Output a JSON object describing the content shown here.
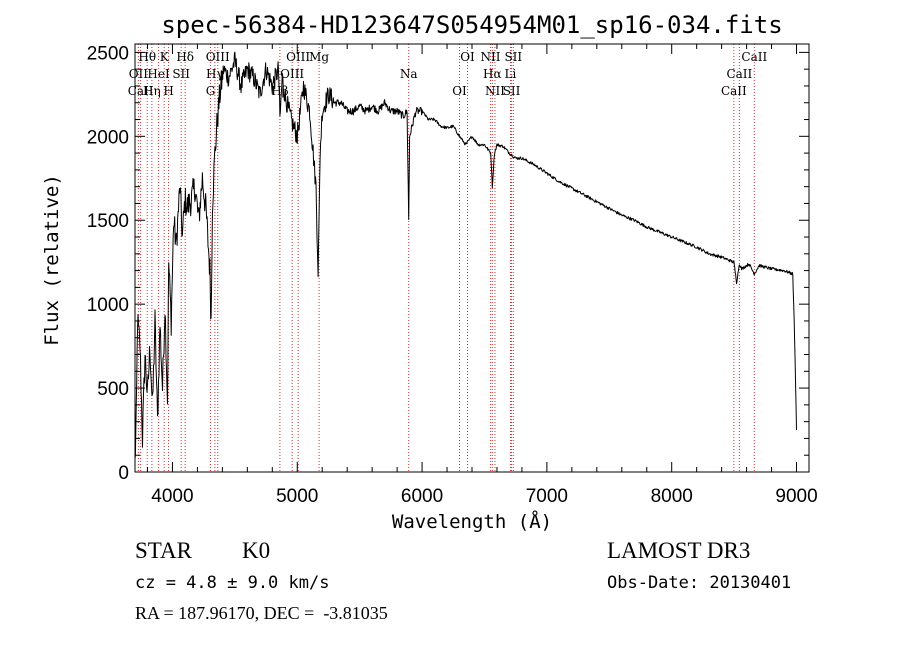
{
  "chart_data": {
    "type": "line",
    "title": "spec-56384-HD123647S054954M01_sp16-034.fits",
    "xlabel": "Wavelength (Å)",
    "ylabel": "Flux (relative)",
    "xlim": [
      3700,
      9100
    ],
    "ylim": [
      0,
      2550
    ],
    "x_ticks": [
      4000,
      5000,
      6000,
      7000,
      8000,
      9000
    ],
    "x_tick_labels": [
      "4000",
      "5000",
      "6000",
      "7000",
      "8000",
      "9000"
    ],
    "y_ticks": [
      0,
      500,
      1000,
      1500,
      2000,
      2500
    ],
    "y_tick_labels": [
      "0",
      "500",
      "1000",
      "1500",
      "2000",
      "2500"
    ],
    "series": [
      {
        "name": "spectrum",
        "x": [
          3700,
          3710,
          3720,
          3740,
          3760,
          3780,
          3800,
          3820,
          3840,
          3860,
          3880,
          3900,
          3920,
          3940,
          3960,
          3970,
          3990,
          4010,
          4030,
          4060,
          4080,
          4100,
          4120,
          4150,
          4180,
          4210,
          4240,
          4270,
          4300,
          4310,
          4320,
          4340,
          4360,
          4380,
          4410,
          4450,
          4500,
          4550,
          4600,
          4650,
          4700,
          4750,
          4800,
          4850,
          4861,
          4880,
          4900,
          4950,
          5000,
          5050,
          5100,
          5150,
          5167,
          5175,
          5183,
          5200,
          5250,
          5300,
          5350,
          5400,
          5450,
          5500,
          5550,
          5600,
          5650,
          5700,
          5750,
          5800,
          5850,
          5880,
          5893,
          5900,
          5950,
          6000,
          6050,
          6100,
          6150,
          6200,
          6250,
          6300,
          6350,
          6400,
          6450,
          6500,
          6550,
          6563,
          6580,
          6600,
          6650,
          6700,
          6750,
          6800,
          6900,
          7000,
          7100,
          7200,
          7300,
          7400,
          7500,
          7600,
          7700,
          7800,
          7900,
          8000,
          8100,
          8200,
          8300,
          8400,
          8498,
          8520,
          8542,
          8560,
          8600,
          8620,
          8662,
          8700,
          8800,
          8900,
          8970,
          8985,
          9000
        ],
        "y": [
          50,
          300,
          900,
          750,
          200,
          700,
          450,
          750,
          380,
          900,
          300,
          880,
          500,
          1000,
          420,
          1250,
          900,
          1500,
          1350,
          1700,
          1400,
          1620,
          1580,
          1620,
          1700,
          1500,
          1750,
          1550,
          1200,
          900,
          1600,
          1900,
          2100,
          2250,
          2400,
          2350,
          2450,
          2300,
          2400,
          2350,
          2250,
          2400,
          2300,
          2400,
          2100,
          2350,
          2250,
          2100,
          2000,
          2300,
          2150,
          1700,
          1200,
          1500,
          1900,
          2150,
          2250,
          2200,
          2200,
          2150,
          2150,
          2180,
          2150,
          2180,
          2150,
          2200,
          2150,
          2150,
          2120,
          2150,
          1500,
          2000,
          2150,
          2150,
          2100,
          2100,
          2060,
          2050,
          2060,
          2000,
          1950,
          2000,
          1950,
          1950,
          1900,
          1700,
          1900,
          1950,
          1940,
          1900,
          1870,
          1870,
          1830,
          1780,
          1730,
          1690,
          1650,
          1610,
          1570,
          1530,
          1500,
          1460,
          1430,
          1400,
          1370,
          1340,
          1300,
          1280,
          1250,
          1130,
          1240,
          1210,
          1230,
          1240,
          1180,
          1230,
          1210,
          1200,
          1180,
          800,
          250
        ]
      }
    ],
    "line_markers": [
      {
        "label": "Hθ",
        "wavelength": 3798
      },
      {
        "label": "OII",
        "wavelength": 3727
      },
      {
        "label": "CaII",
        "wavelength": 3745
      },
      {
        "label": "K",
        "wavelength": 3934
      },
      {
        "label": "HeI",
        "wavelength": 3889
      },
      {
        "label": "Hη",
        "wavelength": 3835
      },
      {
        "label": "Hδ",
        "wavelength": 4102
      },
      {
        "label": "SII",
        "wavelength": 4070
      },
      {
        "label": "H",
        "wavelength": 3969
      },
      {
        "label": "OIII",
        "wavelength": 4363
      },
      {
        "label": "Hγ",
        "wavelength": 4340
      },
      {
        "label": "G",
        "wavelength": 4305
      },
      {
        "label": "OIII",
        "wavelength": 5007
      },
      {
        "label": "OIII",
        "wavelength": 4959
      },
      {
        "label": "Hβ",
        "wavelength": 4861
      },
      {
        "label": "Mg",
        "wavelength": 5175
      },
      {
        "label": "Na",
        "wavelength": 5893
      },
      {
        "label": "OI",
        "wavelength": 6300
      },
      {
        "label": "OI",
        "wavelength": 6364
      },
      {
        "label": "Hα",
        "wavelength": 6563
      },
      {
        "label": "SII",
        "wavelength": 6717
      },
      {
        "label": "NII",
        "wavelength": 6548
      },
      {
        "label": "Li",
        "wavelength": 6708
      },
      {
        "label": "NII",
        "wavelength": 6584
      },
      {
        "label": "SII",
        "wavelength": 6731
      },
      {
        "label": "CaII",
        "wavelength": 8542
      },
      {
        "label": "CaII",
        "wavelength": 8498
      },
      {
        "label": "CaII",
        "wavelength": 8662
      }
    ]
  },
  "info": {
    "object_class": "STAR",
    "subclass": "K0",
    "survey": "LAMOST DR3",
    "redshift": "cz = 4.8 ± 9.0 km/s",
    "obs_date": "Obs-Date: 20130401",
    "coords": "RA = 187.96170, DEC =  -3.81035"
  },
  "colors": {
    "axis": "#000000",
    "spectrum": "#000000",
    "marker": "#cc3333"
  }
}
